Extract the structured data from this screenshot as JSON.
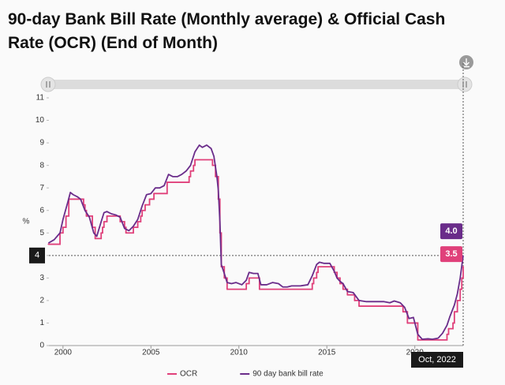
{
  "chart_data": {
    "type": "line",
    "title": "90-day Bank Bill Rate (Monthly average) & Official Cash Rate (OCR) (End of Month)",
    "y_label": "%",
    "xlim": [
      1999.2,
      2022.75
    ],
    "xticks": [
      2000,
      2005,
      2010,
      2015,
      2020
    ],
    "ylim": [
      0,
      11
    ],
    "yticks": [
      0,
      1,
      2,
      3,
      4,
      5,
      6,
      7,
      8,
      9,
      10,
      11
    ],
    "grid": false,
    "legend": "bottom",
    "series": [
      {
        "name": "OCR",
        "color": "#e0407a",
        "step": "after",
        "x": [
          1999.17,
          1999.83,
          2000.0,
          2000.17,
          2000.33,
          2001.17,
          2001.25,
          2001.33,
          2001.67,
          2001.83,
          2002.17,
          2002.25,
          2002.33,
          2002.5,
          2003.25,
          2003.5,
          2003.58,
          2004.0,
          2004.25,
          2004.42,
          2004.5,
          2004.67,
          2004.92,
          2005.17,
          2005.92,
          2007.17,
          2007.25,
          2007.42,
          2007.5,
          2008.5,
          2008.67,
          2008.83,
          2008.92,
          2009.0,
          2009.17,
          2009.33,
          2010.42,
          2010.58,
          2011.17,
          2014.17,
          2014.25,
          2014.42,
          2014.5,
          2015.42,
          2015.58,
          2015.75,
          2015.92,
          2016.17,
          2016.58,
          2016.83,
          2019.33,
          2019.58,
          2020.17,
          2021.83,
          2021.92,
          2022.17,
          2022.25,
          2022.42,
          2022.58,
          2022.67,
          2022.75
        ],
        "values": [
          4.5,
          5.0,
          5.25,
          5.75,
          6.5,
          6.25,
          6.0,
          5.75,
          5.25,
          4.75,
          5.0,
          5.25,
          5.5,
          5.75,
          5.5,
          5.25,
          5.0,
          5.25,
          5.5,
          5.75,
          6.0,
          6.25,
          6.5,
          6.75,
          7.25,
          7.5,
          7.75,
          8.0,
          8.25,
          8.0,
          7.5,
          6.5,
          5.0,
          3.5,
          3.0,
          2.5,
          2.75,
          3.0,
          2.5,
          2.75,
          3.0,
          3.25,
          3.5,
          3.25,
          3.0,
          2.75,
          2.5,
          2.25,
          2.0,
          1.75,
          1.5,
          1.0,
          0.25,
          0.5,
          0.75,
          1.0,
          1.5,
          2.0,
          2.5,
          3.0,
          3.5
        ]
      },
      {
        "name": "90 day bank bill rate",
        "color": "#6a2c8a",
        "x": [
          1999.17,
          1999.5,
          1999.83,
          2000.0,
          2000.25,
          2000.42,
          2000.58,
          2000.83,
          2001.0,
          2001.25,
          2001.5,
          2001.75,
          2001.92,
          2002.17,
          2002.33,
          2002.5,
          2002.75,
          2003.0,
          2003.25,
          2003.5,
          2003.75,
          2004.0,
          2004.25,
          2004.5,
          2004.75,
          2005.0,
          2005.25,
          2005.5,
          2005.75,
          2006.0,
          2006.25,
          2006.5,
          2006.75,
          2007.0,
          2007.25,
          2007.5,
          2007.75,
          2007.92,
          2008.17,
          2008.42,
          2008.58,
          2008.75,
          2008.83,
          2008.92,
          2009.0,
          2009.17,
          2009.33,
          2009.58,
          2009.83,
          2010.17,
          2010.42,
          2010.58,
          2010.83,
          2011.08,
          2011.25,
          2011.58,
          2011.92,
          2012.25,
          2012.5,
          2012.75,
          2013.0,
          2013.5,
          2013.92,
          2014.17,
          2014.42,
          2014.58,
          2014.83,
          2015.17,
          2015.42,
          2015.58,
          2015.75,
          2015.92,
          2016.17,
          2016.5,
          2016.83,
          2017.25,
          2017.75,
          2018.25,
          2018.58,
          2018.83,
          2019.17,
          2019.42,
          2019.67,
          2019.92,
          2020.17,
          2020.42,
          2020.75,
          2021.0,
          2021.33,
          2021.58,
          2021.83,
          2022.0,
          2022.25,
          2022.42,
          2022.58,
          2022.75
        ],
        "values": [
          4.55,
          4.7,
          5.0,
          5.6,
          6.3,
          6.8,
          6.7,
          6.6,
          6.5,
          6.0,
          5.7,
          5.0,
          4.85,
          5.5,
          5.9,
          5.95,
          5.85,
          5.8,
          5.7,
          5.2,
          5.1,
          5.3,
          5.6,
          6.2,
          6.7,
          6.75,
          7.0,
          7.0,
          7.1,
          7.6,
          7.5,
          7.5,
          7.6,
          7.75,
          8.0,
          8.6,
          8.9,
          8.8,
          8.9,
          8.75,
          8.4,
          7.5,
          6.9,
          5.5,
          3.6,
          3.2,
          2.8,
          2.75,
          2.8,
          2.7,
          2.9,
          3.25,
          3.2,
          3.2,
          2.7,
          2.7,
          2.8,
          2.75,
          2.6,
          2.6,
          2.65,
          2.65,
          2.7,
          3.1,
          3.6,
          3.7,
          3.65,
          3.65,
          3.3,
          3.0,
          2.85,
          2.75,
          2.4,
          2.35,
          2.0,
          1.95,
          1.95,
          1.95,
          1.9,
          1.98,
          1.9,
          1.7,
          1.2,
          1.25,
          0.5,
          0.28,
          0.3,
          0.28,
          0.33,
          0.55,
          0.9,
          1.3,
          1.8,
          2.3,
          3.0,
          4.0
        ]
      }
    ],
    "crosshair_y": 4,
    "tooltip": {
      "label": "Oct, 2022",
      "values": [
        {
          "value": 3.5,
          "label": "3.5"
        },
        {
          "value": 4,
          "label": "4.0"
        }
      ]
    }
  }
}
